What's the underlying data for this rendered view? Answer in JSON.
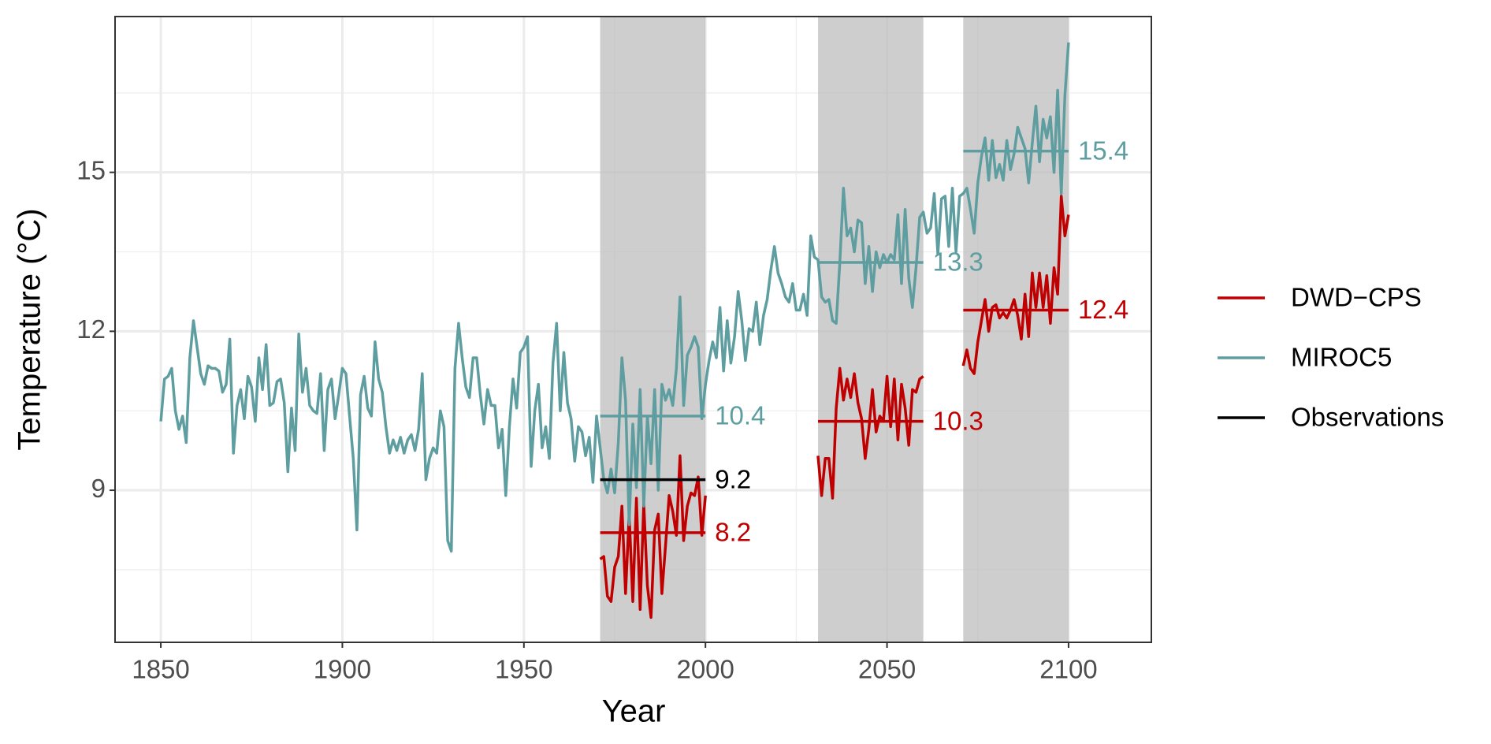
{
  "chart_data": {
    "type": "line",
    "xlabel": "Year",
    "ylabel": "Temperature (°C)",
    "x": [
      1850,
      1851,
      1852,
      1853,
      1854,
      1855,
      1856,
      1857,
      1858,
      1859,
      1860,
      1861,
      1862,
      1863,
      1864,
      1865,
      1866,
      1867,
      1868,
      1869,
      1870,
      1871,
      1872,
      1873,
      1874,
      1875,
      1876,
      1877,
      1878,
      1879,
      1880,
      1881,
      1882,
      1883,
      1884,
      1885,
      1886,
      1887,
      1888,
      1889,
      1890,
      1891,
      1892,
      1893,
      1894,
      1895,
      1896,
      1897,
      1898,
      1899,
      1900,
      1901,
      1902,
      1903,
      1904,
      1905,
      1906,
      1907,
      1908,
      1909,
      1910,
      1911,
      1912,
      1913,
      1914,
      1915,
      1916,
      1917,
      1918,
      1919,
      1920,
      1921,
      1922,
      1923,
      1924,
      1925,
      1926,
      1927,
      1928,
      1929,
      1930,
      1931,
      1932,
      1933,
      1934,
      1935,
      1936,
      1937,
      1938,
      1939,
      1940,
      1941,
      1942,
      1943,
      1944,
      1945,
      1946,
      1947,
      1948,
      1949,
      1950,
      1951,
      1952,
      1953,
      1954,
      1955,
      1956,
      1957,
      1958,
      1959,
      1960,
      1961,
      1962,
      1963,
      1964,
      1965,
      1966,
      1967,
      1968,
      1969,
      1970,
      1971,
      1972,
      1973,
      1974,
      1975,
      1976,
      1977,
      1978,
      1979,
      1980,
      1981,
      1982,
      1983,
      1984,
      1985,
      1986,
      1987,
      1988,
      1989,
      1990,
      1991,
      1992,
      1993,
      1994,
      1995,
      1996,
      1997,
      1998,
      1999,
      2000,
      2001,
      2002,
      2003,
      2004,
      2005,
      2006,
      2007,
      2008,
      2009,
      2010,
      2011,
      2012,
      2013,
      2014,
      2015,
      2016,
      2017,
      2018,
      2019,
      2020,
      2021,
      2022,
      2023,
      2024,
      2025,
      2026,
      2027,
      2028,
      2029,
      2030,
      2031,
      2032,
      2033,
      2034,
      2035,
      2036,
      2037,
      2038,
      2039,
      2040,
      2041,
      2042,
      2043,
      2044,
      2045,
      2046,
      2047,
      2048,
      2049,
      2050,
      2051,
      2052,
      2053,
      2054,
      2055,
      2056,
      2057,
      2058,
      2059,
      2060,
      2061,
      2062,
      2063,
      2064,
      2065,
      2066,
      2067,
      2068,
      2069,
      2070,
      2071,
      2072,
      2073,
      2074,
      2075,
      2076,
      2077,
      2078,
      2079,
      2080,
      2081,
      2082,
      2083,
      2084,
      2085,
      2086,
      2087,
      2088,
      2089,
      2090,
      2091,
      2092,
      2093,
      2094,
      2095,
      2096,
      2097,
      2098,
      2099,
      2100
    ],
    "periods": [
      [
        1971,
        2000
      ],
      [
        2031,
        2060
      ],
      [
        2071,
        2100
      ]
    ],
    "series": [
      {
        "name": "DWD−CPS",
        "color": "#c00000",
        "values": [
          null,
          null,
          null,
          null,
          null,
          null,
          null,
          null,
          null,
          null,
          null,
          null,
          null,
          null,
          null,
          null,
          null,
          null,
          null,
          null,
          null,
          null,
          null,
          null,
          null,
          null,
          null,
          null,
          null,
          null,
          null,
          null,
          null,
          null,
          null,
          null,
          null,
          null,
          null,
          null,
          null,
          null,
          null,
          null,
          null,
          null,
          null,
          null,
          null,
          null,
          null,
          null,
          null,
          null,
          null,
          null,
          null,
          null,
          null,
          null,
          null,
          null,
          null,
          null,
          null,
          null,
          null,
          null,
          null,
          null,
          null,
          null,
          null,
          null,
          null,
          null,
          null,
          null,
          null,
          null,
          null,
          null,
          null,
          null,
          null,
          null,
          null,
          null,
          null,
          null,
          null,
          null,
          null,
          null,
          null,
          null,
          null,
          null,
          null,
          null,
          null,
          null,
          null,
          null,
          null,
          null,
          null,
          null,
          null,
          null,
          null,
          null,
          null,
          null,
          null,
          null,
          null,
          null,
          null,
          null,
          null,
          7.7,
          7.75,
          7.0,
          6.9,
          7.55,
          7.75,
          8.7,
          7.05,
          8.55,
          6.9,
          8.85,
          6.75,
          8.75,
          7.2,
          6.6,
          8.25,
          8.55,
          7.05,
          7.95,
          8.9,
          8.6,
          8.15,
          9.65,
          8.05,
          8.7,
          8.95,
          8.9,
          9.25,
          8.15,
          8.9,
          null,
          null,
          null,
          null,
          null,
          null,
          null,
          null,
          null,
          null,
          null,
          null,
          null,
          null,
          null,
          null,
          null,
          null,
          null,
          null,
          null,
          null,
          null,
          null,
          null,
          null,
          null,
          null,
          null,
          null,
          9.65,
          8.9,
          9.6,
          9.6,
          8.85,
          10.55,
          11.3,
          10.7,
          11.1,
          10.75,
          11.2,
          10.65,
          10.35,
          9.6,
          10.15,
          10.9,
          10.1,
          10.4,
          10.3,
          11.15,
          10.2,
          11.1,
          9.95,
          11.0,
          10.55,
          9.85,
          10.9,
          10.85,
          11.1,
          11.15,
          null,
          null,
          null,
          null,
          null,
          null,
          null,
          null,
          null,
          null,
          11.35,
          11.65,
          11.3,
          11.2,
          11.8,
          12.2,
          12.6,
          12.0,
          12.45,
          12.5,
          12.25,
          12.35,
          12.25,
          12.4,
          12.6,
          12.3,
          11.85,
          12.7,
          11.9,
          13.1,
          12.45,
          13.1,
          12.45,
          13.05,
          12.15,
          13.2,
          12.7,
          14.55,
          13.8,
          14.2
        ],
        "means": [
          8.2,
          10.3,
          12.4
        ]
      },
      {
        "name": "MIROC5",
        "color": "#5f9ea0",
        "values": [
          10.3,
          11.1,
          11.15,
          11.3,
          10.5,
          10.15,
          10.4,
          9.9,
          11.5,
          12.2,
          11.7,
          11.2,
          11.0,
          11.35,
          11.3,
          11.3,
          11.25,
          10.85,
          11.0,
          11.85,
          9.7,
          10.6,
          10.9,
          10.35,
          11.15,
          10.95,
          10.3,
          11.5,
          10.9,
          11.75,
          10.6,
          10.65,
          11.05,
          11.1,
          10.65,
          9.35,
          10.55,
          9.75,
          11.95,
          10.85,
          11.3,
          10.6,
          10.5,
          10.45,
          11.2,
          9.75,
          10.9,
          11.1,
          10.35,
          10.8,
          11.3,
          11.2,
          10.4,
          9.6,
          8.25,
          10.8,
          11.15,
          10.55,
          10.4,
          11.8,
          11.1,
          10.85,
          10.2,
          9.7,
          9.95,
          9.75,
          10.0,
          9.7,
          9.95,
          10.05,
          9.75,
          10.15,
          11.2,
          9.2,
          9.6,
          9.8,
          9.7,
          10.5,
          10.2,
          8.05,
          7.85,
          11.3,
          12.15,
          11.5,
          10.95,
          10.75,
          11.5,
          11.5,
          10.8,
          10.25,
          10.9,
          10.6,
          10.6,
          9.8,
          10.15,
          8.9,
          10.2,
          11.1,
          10.55,
          11.6,
          11.7,
          11.9,
          9.45,
          10.5,
          11.0,
          9.8,
          10.2,
          9.6,
          11.4,
          12.15,
          10.5,
          11.6,
          10.65,
          10.35,
          9.55,
          10.2,
          10.1,
          9.65,
          10.0,
          9.15,
          10.4,
          9.8,
          9.2,
          8.95,
          9.4,
          8.95,
          9.9,
          11.5,
          10.7,
          8.35,
          10.25,
          9.05,
          10.9,
          8.7,
          10.4,
          9.5,
          10.9,
          9.0,
          11.0,
          10.7,
          10.9,
          10.6,
          11.3,
          12.65,
          10.6,
          11.55,
          11.7,
          11.9,
          11.7,
          10.35,
          11.0,
          11.45,
          11.8,
          11.5,
          12.45,
          11.25,
          12.2,
          11.4,
          11.9,
          12.75,
          12.2,
          11.45,
          12.05,
          12.0,
          12.55,
          11.75,
          12.3,
          12.6,
          13.15,
          13.6,
          13.1,
          12.9,
          12.65,
          12.55,
          12.9,
          12.4,
          12.4,
          12.7,
          12.3,
          13.8,
          13.4,
          13.35,
          12.65,
          12.55,
          12.6,
          12.2,
          12.15,
          13.3,
          14.7,
          13.8,
          13.95,
          13.5,
          14.1,
          14.05,
          12.9,
          13.6,
          12.75,
          13.5,
          13.2,
          13.45,
          13.3,
          13.45,
          13.35,
          14.2,
          12.9,
          14.3,
          13.0,
          12.45,
          13.2,
          14.15,
          14.25,
          13.85,
          13.95,
          14.6,
          13.45,
          14.5,
          14.55,
          13.6,
          14.7,
          13.5,
          14.55,
          14.6,
          14.7,
          14.3,
          13.85,
          14.8,
          15.3,
          15.65,
          14.85,
          15.6,
          14.9,
          15.15,
          14.85,
          15.6,
          15.05,
          15.35,
          15.85,
          15.65,
          15.45,
          14.8,
          15.55,
          16.25,
          15.2,
          16.0,
          15.65,
          16.05,
          15.0,
          16.55,
          14.6,
          16.45,
          17.45
        ],
        "means": [
          10.4,
          13.3,
          15.4
        ]
      },
      {
        "name": "Observations",
        "color": "#000000",
        "means": [
          9.2,
          null,
          null
        ]
      }
    ],
    "xlim": [
      1837.4,
      2122.8
    ],
    "ylim": [
      6.13,
      17.94
    ],
    "xticks": [
      1850,
      1900,
      1950,
      2000,
      2050,
      2100
    ],
    "yticks": [
      9,
      12,
      15
    ],
    "x_minor_ticks": [
      1875,
      1925,
      1975,
      2025,
      2075
    ],
    "y_minor_ticks": [
      7.5,
      10.5,
      13.5,
      16.5
    ],
    "grid": true,
    "legend": "right"
  }
}
